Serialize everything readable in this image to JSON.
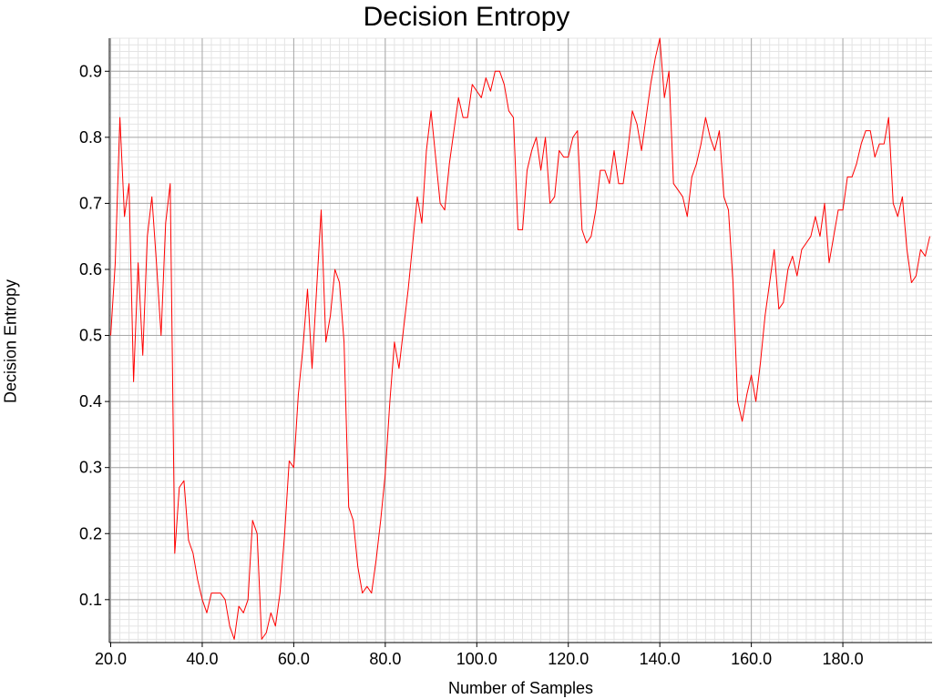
{
  "chart_data": {
    "type": "line",
    "title": "Decision Entropy",
    "xlabel": "Number of Samples",
    "ylabel": "Decision Entropy",
    "xlim": [
      19.7,
      199.5
    ],
    "ylim": [
      0.035,
      0.95
    ],
    "grid": true,
    "xticks": [
      20,
      40,
      60,
      80,
      100,
      120,
      140,
      160,
      180
    ],
    "xtick_labels": [
      "20.0",
      "40.0",
      "60.0",
      "80.0",
      "100.0",
      "120.0",
      "140.0",
      "160.0",
      "180.0"
    ],
    "yticks": [
      0.1,
      0.2,
      0.3,
      0.4,
      0.5,
      0.6,
      0.7,
      0.8,
      0.9
    ],
    "ytick_labels": [
      "0.1",
      "0.2",
      "0.3",
      "0.4",
      "0.5",
      "0.6",
      "0.7",
      "0.8",
      "0.9"
    ],
    "series": [
      {
        "color": "#ff0000",
        "x_start": 20,
        "x_step": 1,
        "values": [
          0.5,
          0.61,
          0.83,
          0.68,
          0.73,
          0.43,
          0.61,
          0.47,
          0.65,
          0.71,
          0.61,
          0.5,
          0.67,
          0.73,
          0.17,
          0.27,
          0.28,
          0.19,
          0.17,
          0.13,
          0.1,
          0.08,
          0.11,
          0.11,
          0.11,
          0.1,
          0.06,
          0.04,
          0.09,
          0.08,
          0.1,
          0.22,
          0.2,
          0.04,
          0.05,
          0.08,
          0.06,
          0.11,
          0.2,
          0.31,
          0.3,
          0.41,
          0.48,
          0.57,
          0.45,
          0.57,
          0.69,
          0.49,
          0.53,
          0.6,
          0.58,
          0.49,
          0.24,
          0.22,
          0.15,
          0.11,
          0.12,
          0.11,
          0.16,
          0.22,
          0.29,
          0.4,
          0.49,
          0.45,
          0.51,
          0.57,
          0.64,
          0.71,
          0.67,
          0.78,
          0.84,
          0.77,
          0.7,
          0.69,
          0.76,
          0.81,
          0.86,
          0.83,
          0.83,
          0.88,
          0.87,
          0.86,
          0.89,
          0.87,
          0.9,
          0.9,
          0.88,
          0.84,
          0.83,
          0.66,
          0.66,
          0.75,
          0.78,
          0.8,
          0.75,
          0.8,
          0.7,
          0.71,
          0.78,
          0.77,
          0.77,
          0.8,
          0.81,
          0.66,
          0.64,
          0.65,
          0.69,
          0.75,
          0.75,
          0.73,
          0.78,
          0.73,
          0.73,
          0.78,
          0.84,
          0.82,
          0.78,
          0.83,
          0.88,
          0.92,
          0.95,
          0.86,
          0.9,
          0.73,
          0.72,
          0.71,
          0.68,
          0.74,
          0.76,
          0.79,
          0.83,
          0.8,
          0.78,
          0.81,
          0.71,
          0.69,
          0.58,
          0.4,
          0.37,
          0.41,
          0.44,
          0.4,
          0.46,
          0.53,
          0.58,
          0.63,
          0.54,
          0.55,
          0.6,
          0.62,
          0.59,
          0.63,
          0.64,
          0.65,
          0.68,
          0.65,
          0.7,
          0.61,
          0.65,
          0.69,
          0.69,
          0.74,
          0.74,
          0.76,
          0.79,
          0.81,
          0.81,
          0.77,
          0.79,
          0.79,
          0.83,
          0.7,
          0.68,
          0.71,
          0.63,
          0.58,
          0.59,
          0.63,
          0.62,
          0.65
        ]
      }
    ]
  }
}
